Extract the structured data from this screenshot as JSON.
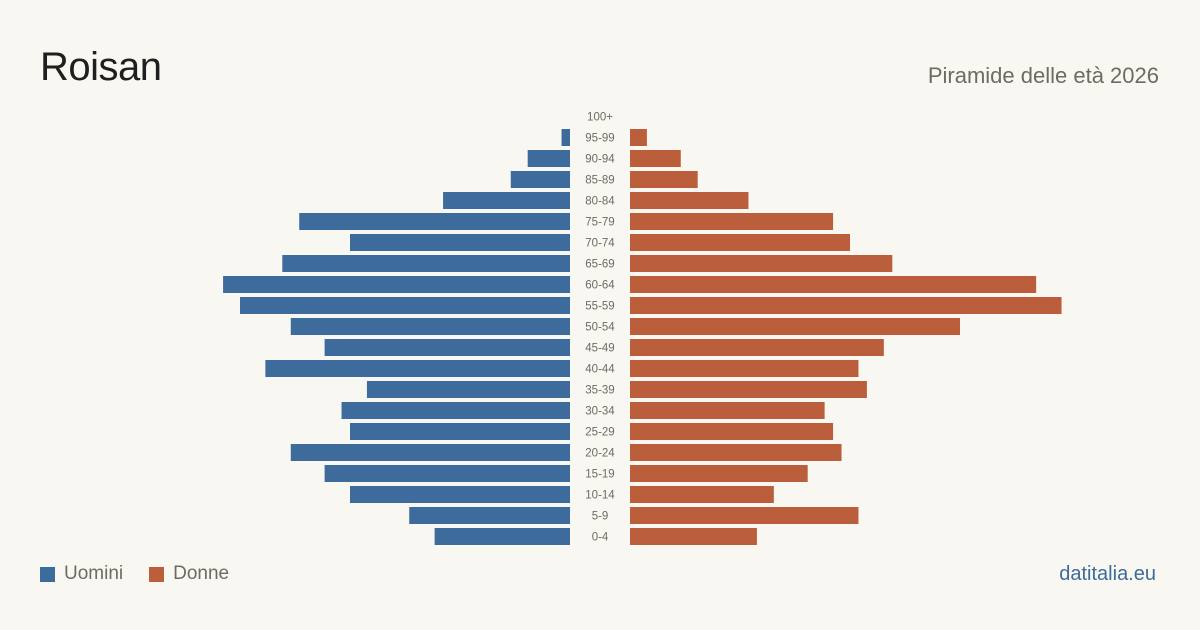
{
  "header": {
    "title": "Roisan",
    "subtitle": "Piramide delle età 2026"
  },
  "legend": {
    "men_label": "Uomini",
    "women_label": "Donne"
  },
  "footer": {
    "source": "datitalia.eu"
  },
  "colors": {
    "men": "#3d6b9b",
    "women": "#bb5e3c",
    "background": "#f9f7f2",
    "tick_text": "#6f6a63"
  },
  "chart_data": {
    "type": "bar",
    "orientation": "horizontal-pyramid",
    "categories": [
      "100+",
      "95-99",
      "90-94",
      "85-89",
      "80-84",
      "75-79",
      "70-74",
      "65-69",
      "60-64",
      "55-59",
      "50-54",
      "45-49",
      "40-44",
      "35-39",
      "30-34",
      "25-29",
      "20-24",
      "15-19",
      "10-14",
      "5-9",
      "0-4"
    ],
    "series": [
      {
        "name": "Uomini",
        "values": [
          0,
          1,
          5,
          7,
          15,
          32,
          26,
          34,
          41,
          39,
          33,
          29,
          36,
          24,
          27,
          26,
          33,
          29,
          26,
          19,
          16
        ]
      },
      {
        "name": "Donne",
        "values": [
          0,
          2,
          6,
          8,
          14,
          24,
          26,
          31,
          48,
          51,
          39,
          30,
          27,
          28,
          23,
          24,
          25,
          21,
          17,
          27,
          15
        ]
      }
    ],
    "xlim": [
      0,
      52
    ],
    "grid": false,
    "legend_position": "bottom-left"
  }
}
